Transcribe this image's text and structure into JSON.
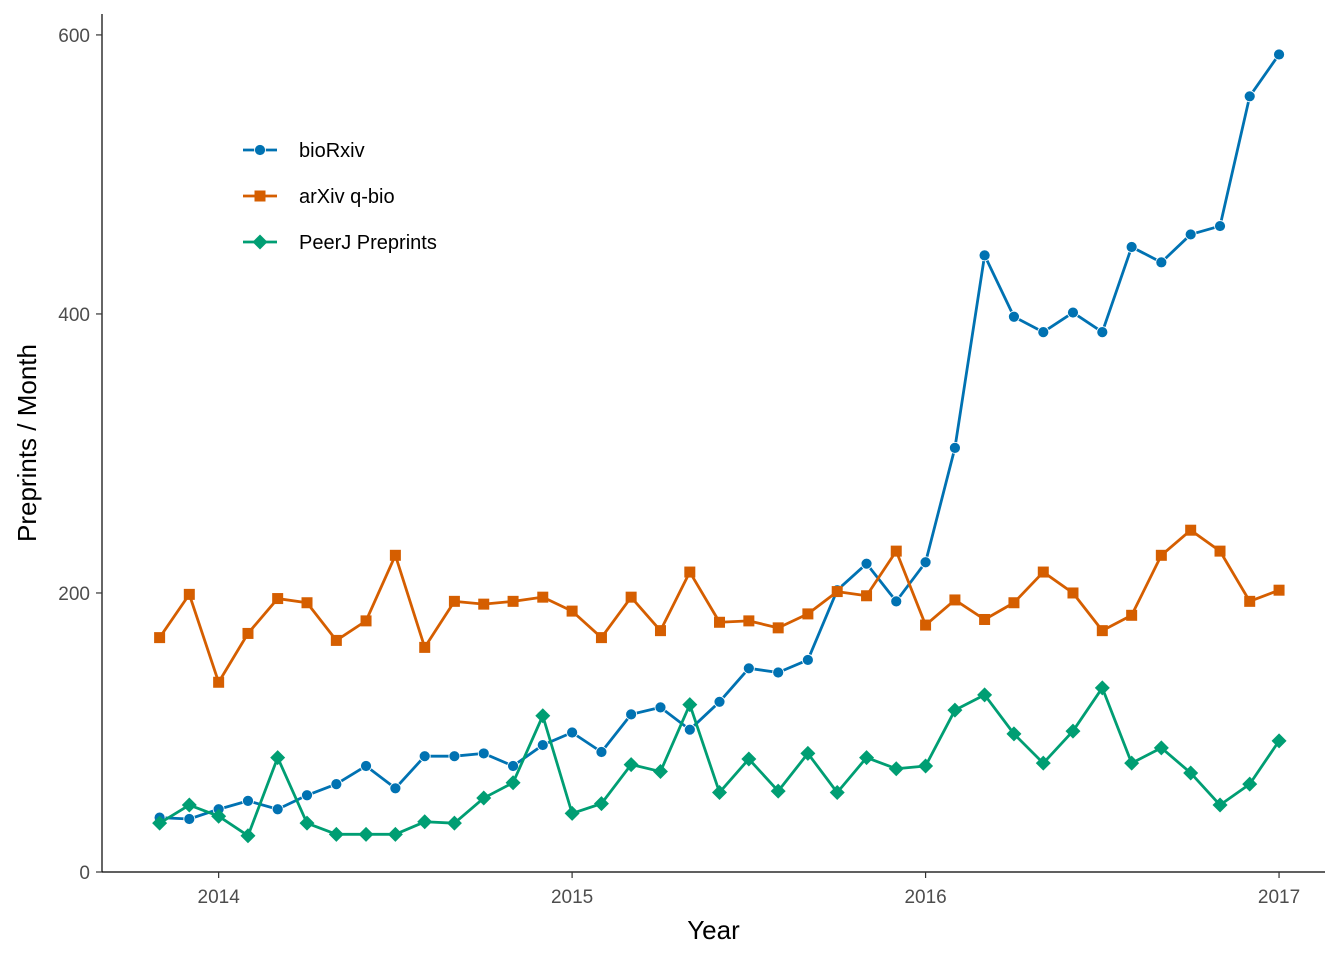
{
  "chart_data": {
    "type": "line",
    "xlabel": "Year",
    "ylabel": "Preprints / Month",
    "x_ticks": [
      "2014",
      "2015",
      "2016",
      "2017"
    ],
    "x_tick_values": [
      2014,
      2015,
      2016,
      2017
    ],
    "y_ticks": [
      "0",
      "200",
      "400",
      "600"
    ],
    "y_tick_values": [
      0,
      200,
      400,
      600
    ],
    "xlim": [
      2013.67,
      2017.13
    ],
    "ylim": [
      0,
      615
    ],
    "grid": false,
    "legend_position": "top-left",
    "x": [
      2013.833,
      2013.917,
      2014.0,
      2014.083,
      2014.167,
      2014.25,
      2014.333,
      2014.417,
      2014.5,
      2014.583,
      2014.667,
      2014.75,
      2014.833,
      2014.917,
      2015.0,
      2015.083,
      2015.167,
      2015.25,
      2015.333,
      2015.417,
      2015.5,
      2015.583,
      2015.667,
      2015.75,
      2015.833,
      2015.917,
      2016.0,
      2016.083,
      2016.167,
      2016.25,
      2016.333,
      2016.417,
      2016.5,
      2016.583,
      2016.667,
      2016.75,
      2016.833,
      2016.917,
      2017.0
    ],
    "series": [
      {
        "name": "bioRxiv",
        "color": "#0072B2",
        "marker": "circle",
        "values": [
          39,
          38,
          45,
          51,
          45,
          55,
          63,
          76,
          60,
          83,
          83,
          85,
          76,
          91,
          100,
          86,
          113,
          118,
          102,
          122,
          146,
          143,
          152,
          202,
          221,
          194,
          222,
          304,
          442,
          398,
          387,
          401,
          387,
          448,
          437,
          457,
          463,
          556,
          586
        ]
      },
      {
        "name": "arXiv q-bio",
        "color": "#D55E00",
        "marker": "square",
        "values": [
          168,
          199,
          136,
          171,
          196,
          193,
          166,
          180,
          227,
          161,
          194,
          192,
          194,
          197,
          187,
          168,
          197,
          173,
          215,
          179,
          180,
          175,
          185,
          201,
          198,
          230,
          177,
          195,
          181,
          193,
          215,
          200,
          173,
          184,
          227,
          245,
          230,
          194,
          202
        ]
      },
      {
        "name": "PeerJ Preprints",
        "color": "#009E73",
        "marker": "diamond",
        "values": [
          35,
          48,
          40,
          26,
          82,
          35,
          27,
          27,
          27,
          36,
          35,
          53,
          64,
          112,
          42,
          49,
          77,
          72,
          120,
          57,
          81,
          58,
          85,
          57,
          82,
          74,
          76,
          116,
          127,
          99,
          78,
          101,
          132,
          78,
          89,
          71,
          48,
          63,
          94
        ]
      }
    ]
  }
}
